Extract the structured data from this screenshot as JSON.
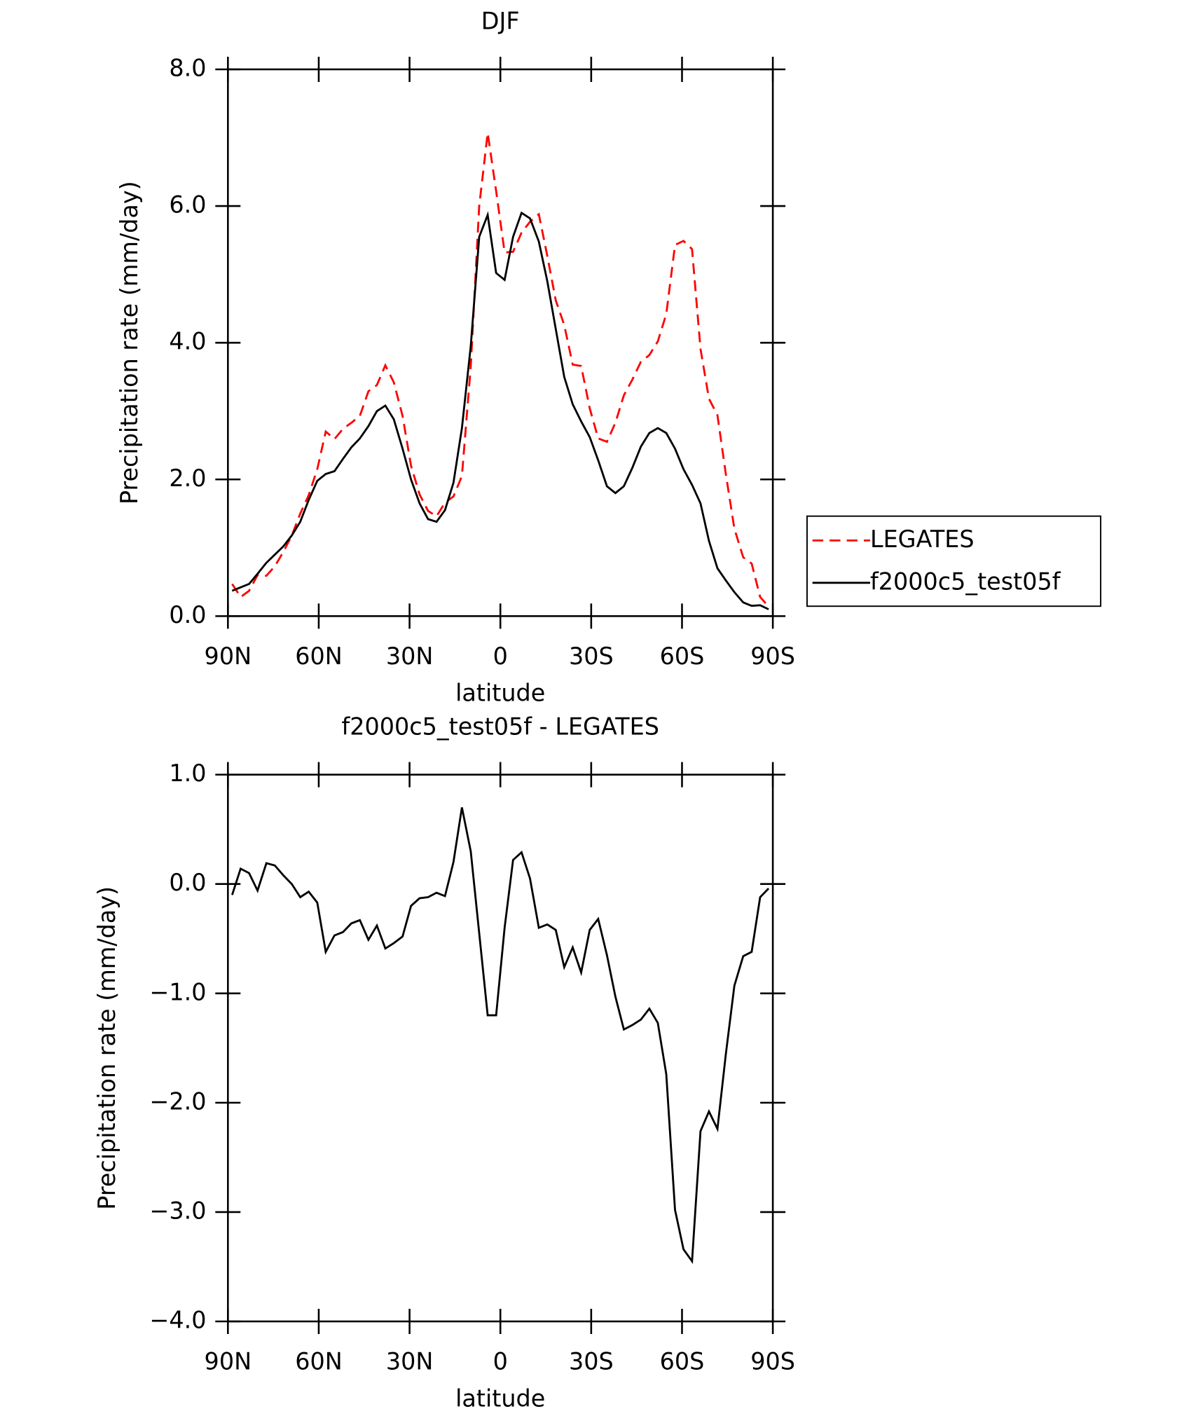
{
  "chart_data": [
    {
      "type": "line",
      "title": "DJF",
      "xlabel": "latitude",
      "ylabel": "Precipitation rate (mm/day)",
      "x": [
        88.6,
        85.8,
        83.0,
        80.2,
        77.3,
        74.5,
        71.7,
        68.9,
        66.1,
        63.3,
        60.5,
        57.7,
        54.8,
        52.0,
        49.2,
        46.4,
        43.6,
        40.8,
        38.0,
        35.2,
        32.3,
        29.5,
        26.7,
        23.9,
        21.1,
        18.3,
        15.5,
        12.7,
        9.8,
        7.0,
        4.2,
        1.4,
        -1.4,
        -4.2,
        -7.0,
        -9.8,
        -12.7,
        -15.5,
        -18.3,
        -21.1,
        -23.9,
        -26.7,
        -29.5,
        -32.3,
        -35.2,
        -38.0,
        -40.8,
        -43.6,
        -46.4,
        -49.2,
        -52.0,
        -54.8,
        -57.7,
        -60.5,
        -63.3,
        -66.1,
        -68.9,
        -71.7,
        -74.5,
        -77.3,
        -80.2,
        -83.0,
        -85.8,
        -88.6
      ],
      "series": [
        {
          "name": "LEGATES",
          "color": "#ff0000",
          "dashed": true,
          "values": [
            0.47,
            0.28,
            0.37,
            0.6,
            0.59,
            0.73,
            0.94,
            1.18,
            1.5,
            1.77,
            2.15,
            2.7,
            2.59,
            2.74,
            2.83,
            2.93,
            3.29,
            3.38,
            3.67,
            3.42,
            2.93,
            2.2,
            1.78,
            1.54,
            1.46,
            1.66,
            1.75,
            2.05,
            3.65,
            6.0,
            7.07,
            6.22,
            5.32,
            5.33,
            5.61,
            5.77,
            5.88,
            5.27,
            4.62,
            4.26,
            3.68,
            3.66,
            3.04,
            2.6,
            2.55,
            2.83,
            3.23,
            3.46,
            3.72,
            3.82,
            4.02,
            4.42,
            5.43,
            5.49,
            5.37,
            3.91,
            3.18,
            2.94,
            2.07,
            1.28,
            0.86,
            0.77,
            0.28,
            0.14
          ]
        },
        {
          "name": "f2000c5_test05f",
          "color": "#000000",
          "dashed": false,
          "values": [
            0.37,
            0.42,
            0.47,
            0.62,
            0.78,
            0.9,
            1.02,
            1.18,
            1.38,
            1.7,
            1.98,
            2.08,
            2.12,
            2.3,
            2.47,
            2.6,
            2.78,
            3.0,
            3.08,
            2.88,
            2.45,
            2.0,
            1.65,
            1.42,
            1.38,
            1.55,
            1.95,
            2.75,
            3.95,
            5.55,
            5.87,
            5.02,
            4.92,
            5.55,
            5.9,
            5.82,
            5.48,
            4.9,
            4.2,
            3.5,
            3.1,
            2.85,
            2.62,
            2.28,
            1.9,
            1.8,
            1.9,
            2.17,
            2.48,
            2.68,
            2.75,
            2.68,
            2.45,
            2.15,
            1.92,
            1.65,
            1.1,
            0.7,
            0.52,
            0.35,
            0.2,
            0.15,
            0.16,
            0.1
          ]
        }
      ],
      "xlim": [
        90,
        -90
      ],
      "xticks": [
        {
          "value": 90,
          "label": "90N"
        },
        {
          "value": 60,
          "label": "60N"
        },
        {
          "value": 30,
          "label": "30N"
        },
        0,
        {
          "value": -30,
          "label": "30S"
        },
        {
          "value": -60,
          "label": "60S"
        },
        {
          "value": -90,
          "label": "90S"
        }
      ],
      "ylim": [
        0,
        8
      ],
      "yticks": [
        {
          "value": 0,
          "label": "0.0"
        },
        {
          "value": 2,
          "label": "2.0"
        },
        {
          "value": 4,
          "label": "4.0"
        },
        {
          "value": 6,
          "label": "6.0"
        },
        {
          "value": 8,
          "label": "8.0"
        }
      ],
      "legend": "right"
    },
    {
      "type": "line",
      "title": "f2000c5_test05f - LEGATES",
      "xlabel": "latitude",
      "ylabel": "Precipitation rate (mm/day)",
      "x": [
        88.6,
        85.8,
        83.0,
        80.2,
        77.3,
        74.5,
        71.7,
        68.9,
        66.1,
        63.3,
        60.5,
        57.7,
        54.8,
        52.0,
        49.2,
        46.4,
        43.6,
        40.8,
        38.0,
        35.2,
        32.3,
        29.5,
        26.7,
        23.9,
        21.1,
        18.3,
        15.5,
        12.7,
        9.8,
        7.0,
        4.2,
        1.4,
        -1.4,
        -4.2,
        -7.0,
        -9.8,
        -12.7,
        -15.5,
        -18.3,
        -21.1,
        -23.9,
        -26.7,
        -29.5,
        -32.3,
        -35.2,
        -38.0,
        -40.8,
        -43.6,
        -46.4,
        -49.2,
        -52.0,
        -54.8,
        -57.7,
        -60.5,
        -63.3,
        -66.1,
        -68.9,
        -71.7,
        -74.5,
        -77.3,
        -80.2,
        -83.0,
        -85.8,
        -88.6
      ],
      "series": [
        {
          "color": "#000000",
          "dashed": false,
          "values": [
            -0.1,
            0.14,
            0.1,
            -0.06,
            0.19,
            0.17,
            0.08,
            0.0,
            -0.12,
            -0.07,
            -0.17,
            -0.62,
            -0.47,
            -0.44,
            -0.36,
            -0.33,
            -0.51,
            -0.38,
            -0.59,
            -0.54,
            -0.48,
            -0.2,
            -0.13,
            -0.12,
            -0.08,
            -0.11,
            0.2,
            0.7,
            0.3,
            -0.45,
            -1.2,
            -1.2,
            -0.4,
            0.22,
            0.29,
            0.05,
            -0.4,
            -0.37,
            -0.42,
            -0.76,
            -0.58,
            -0.81,
            -0.42,
            -0.32,
            -0.65,
            -1.03,
            -1.33,
            -1.29,
            -1.24,
            -1.14,
            -1.27,
            -1.74,
            -2.98,
            -3.34,
            -3.45,
            -2.26,
            -2.08,
            -2.24,
            -1.55,
            -0.93,
            -0.66,
            -0.62,
            -0.12,
            -0.04
          ]
        }
      ],
      "xlim": [
        90,
        -90
      ],
      "xticks": [
        {
          "value": 90,
          "label": "90N"
        },
        {
          "value": 60,
          "label": "60N"
        },
        {
          "value": 30,
          "label": "30N"
        },
        0,
        {
          "value": -30,
          "label": "30S"
        },
        {
          "value": -60,
          "label": "60S"
        },
        {
          "value": -90,
          "label": "90S"
        }
      ],
      "ylim": [
        -4,
        1
      ],
      "yticks": [
        {
          "value": -4,
          "label": "−4.0"
        },
        {
          "value": -3,
          "label": "−3.0"
        },
        {
          "value": -2,
          "label": "−2.0"
        },
        {
          "value": -1,
          "label": "−1.0"
        },
        {
          "value": 0,
          "label": "0.0"
        },
        {
          "value": 1,
          "label": "1.0"
        }
      ]
    }
  ]
}
